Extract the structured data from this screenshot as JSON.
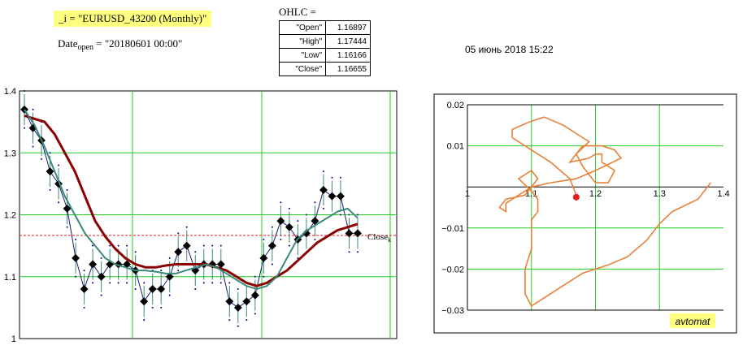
{
  "header": {
    "symbol_line": "_i = \"EURUSD_43200  (Monthly)\"",
    "date_label": "Date",
    "date_sub": "open",
    "date_value": " = \"20180601    00:00\"",
    "ohlc_title": "OHLC =",
    "ohlc": [
      {
        "key": "\"Open\"",
        "value": "1.16897"
      },
      {
        "key": "\"High\"",
        "value": "1.17444"
      },
      {
        "key": "\"Low\"",
        "value": "1.16166"
      },
      {
        "key": "\"Close\"",
        "value": "1.16655"
      }
    ],
    "datetime": "05 июнь 2018    15:22"
  },
  "colors": {
    "grid": "#22cc22",
    "ma_slow": "#8b0000",
    "ma_mid": "#3a8a7a",
    "close": "#1a1a7a",
    "red": "#e41a1c",
    "orange": "#e8803a"
  },
  "chart_data": [
    {
      "type": "line",
      "title": "",
      "ylim": [
        1.0,
        1.4
      ],
      "yticks": [
        "1.4",
        "1.3",
        "1.2",
        "1.1",
        "1"
      ],
      "close_label": "Close",
      "close_sub": "k",
      "close_level": 1.16655,
      "series": [
        {
          "name": "",
          "values": [
            1.37,
            1.34,
            1.32,
            1.27,
            1.25,
            1.21,
            1.13,
            1.08,
            1.12,
            1.1,
            1.12,
            1.12,
            1.12,
            1.11,
            1.06,
            1.08,
            1.08,
            1.1,
            1.14,
            1.15,
            1.11,
            1.12,
            1.12,
            1.12,
            1.06,
            1.05,
            1.06,
            1.07,
            1.13,
            1.15,
            1.19,
            1.18,
            1.16,
            1.17,
            1.19,
            1.24,
            1.23,
            1.23,
            1.17,
            1.17
          ]
        },
        {
          "name": "",
          "values": [
            1.36,
            1.355,
            1.35,
            1.33,
            1.3,
            1.27,
            1.23,
            1.19,
            1.165,
            1.145,
            1.13,
            1.12,
            1.115,
            1.115,
            1.118,
            1.12,
            1.12,
            1.12,
            1.12,
            1.115,
            1.11,
            1.1,
            1.09,
            1.085,
            1.09,
            1.1,
            1.11,
            1.125,
            1.14,
            1.155,
            1.165,
            1.175,
            1.18,
            1.185
          ]
        },
        {
          "name": "",
          "values": [
            1.37,
            1.345,
            1.31,
            1.27,
            1.23,
            1.2,
            1.17,
            1.15,
            1.13,
            1.12,
            1.115,
            1.11,
            1.11,
            1.108,
            1.105,
            1.105,
            1.11,
            1.115,
            1.12,
            1.115,
            1.105,
            1.095,
            1.085,
            1.08,
            1.085,
            1.1,
            1.13,
            1.16,
            1.175,
            1.185,
            1.195,
            1.205,
            1.21,
            1.195
          ]
        }
      ]
    },
    {
      "type": "line",
      "title": "",
      "xlim": [
        1.0,
        1.4
      ],
      "ylim": [
        -0.03,
        0.02
      ],
      "xticks": [
        "1",
        "1.1",
        "1.2",
        "1.3",
        "1.4"
      ],
      "yticks": [
        "0.02",
        "0.01",
        "−0.01",
        "−0.02",
        "−0.03"
      ],
      "badge": "avtomat",
      "point": {
        "x": 1.17,
        "y": -0.0025
      },
      "x": [
        1.17,
        1.16,
        1.13,
        1.1,
        1.07,
        1.07,
        1.1,
        1.12,
        1.15,
        1.18,
        1.19,
        1.17,
        1.16,
        1.19,
        1.2,
        1.21,
        1.21,
        1.23,
        1.22,
        1.2,
        1.19,
        1.18,
        1.17,
        1.18,
        1.21,
        1.23,
        1.24,
        1.2,
        1.17,
        1.13,
        1.1,
        1.08,
        1.06,
        1.06,
        1.05,
        1.06,
        1.09,
        1.1,
        1.11,
        1.1,
        1.08,
        1.1,
        1.11,
        1.11,
        1.1,
        1.1,
        1.1,
        1.09,
        1.09,
        1.1,
        1.12,
        1.15,
        1.18,
        1.22,
        1.25,
        1.28,
        1.3,
        1.32,
        1.36,
        1.38
      ],
      "y": [
        -0.002,
        0.002,
        0.006,
        0.009,
        0.012,
        0.014,
        0.016,
        0.017,
        0.015,
        0.012,
        0.011,
        0.008,
        0.006,
        0.007,
        0.008,
        0.008,
        0.006,
        0.004,
        0.001,
        0.001,
        0.003,
        0.005,
        0.008,
        0.01,
        0.01,
        0.009,
        0.007,
        0.004,
        0.002,
        0.001,
        0.0,
        -0.002,
        -0.004,
        -0.006,
        -0.005,
        -0.003,
        -0.002,
        0.0,
        0.002,
        0.004,
        0.002,
        -0.001,
        -0.003,
        -0.006,
        -0.008,
        -0.011,
        -0.015,
        -0.02,
        -0.026,
        -0.029,
        -0.027,
        -0.024,
        -0.021,
        -0.019,
        -0.017,
        -0.013,
        -0.009,
        -0.006,
        -0.003,
        0.001
      ]
    }
  ]
}
